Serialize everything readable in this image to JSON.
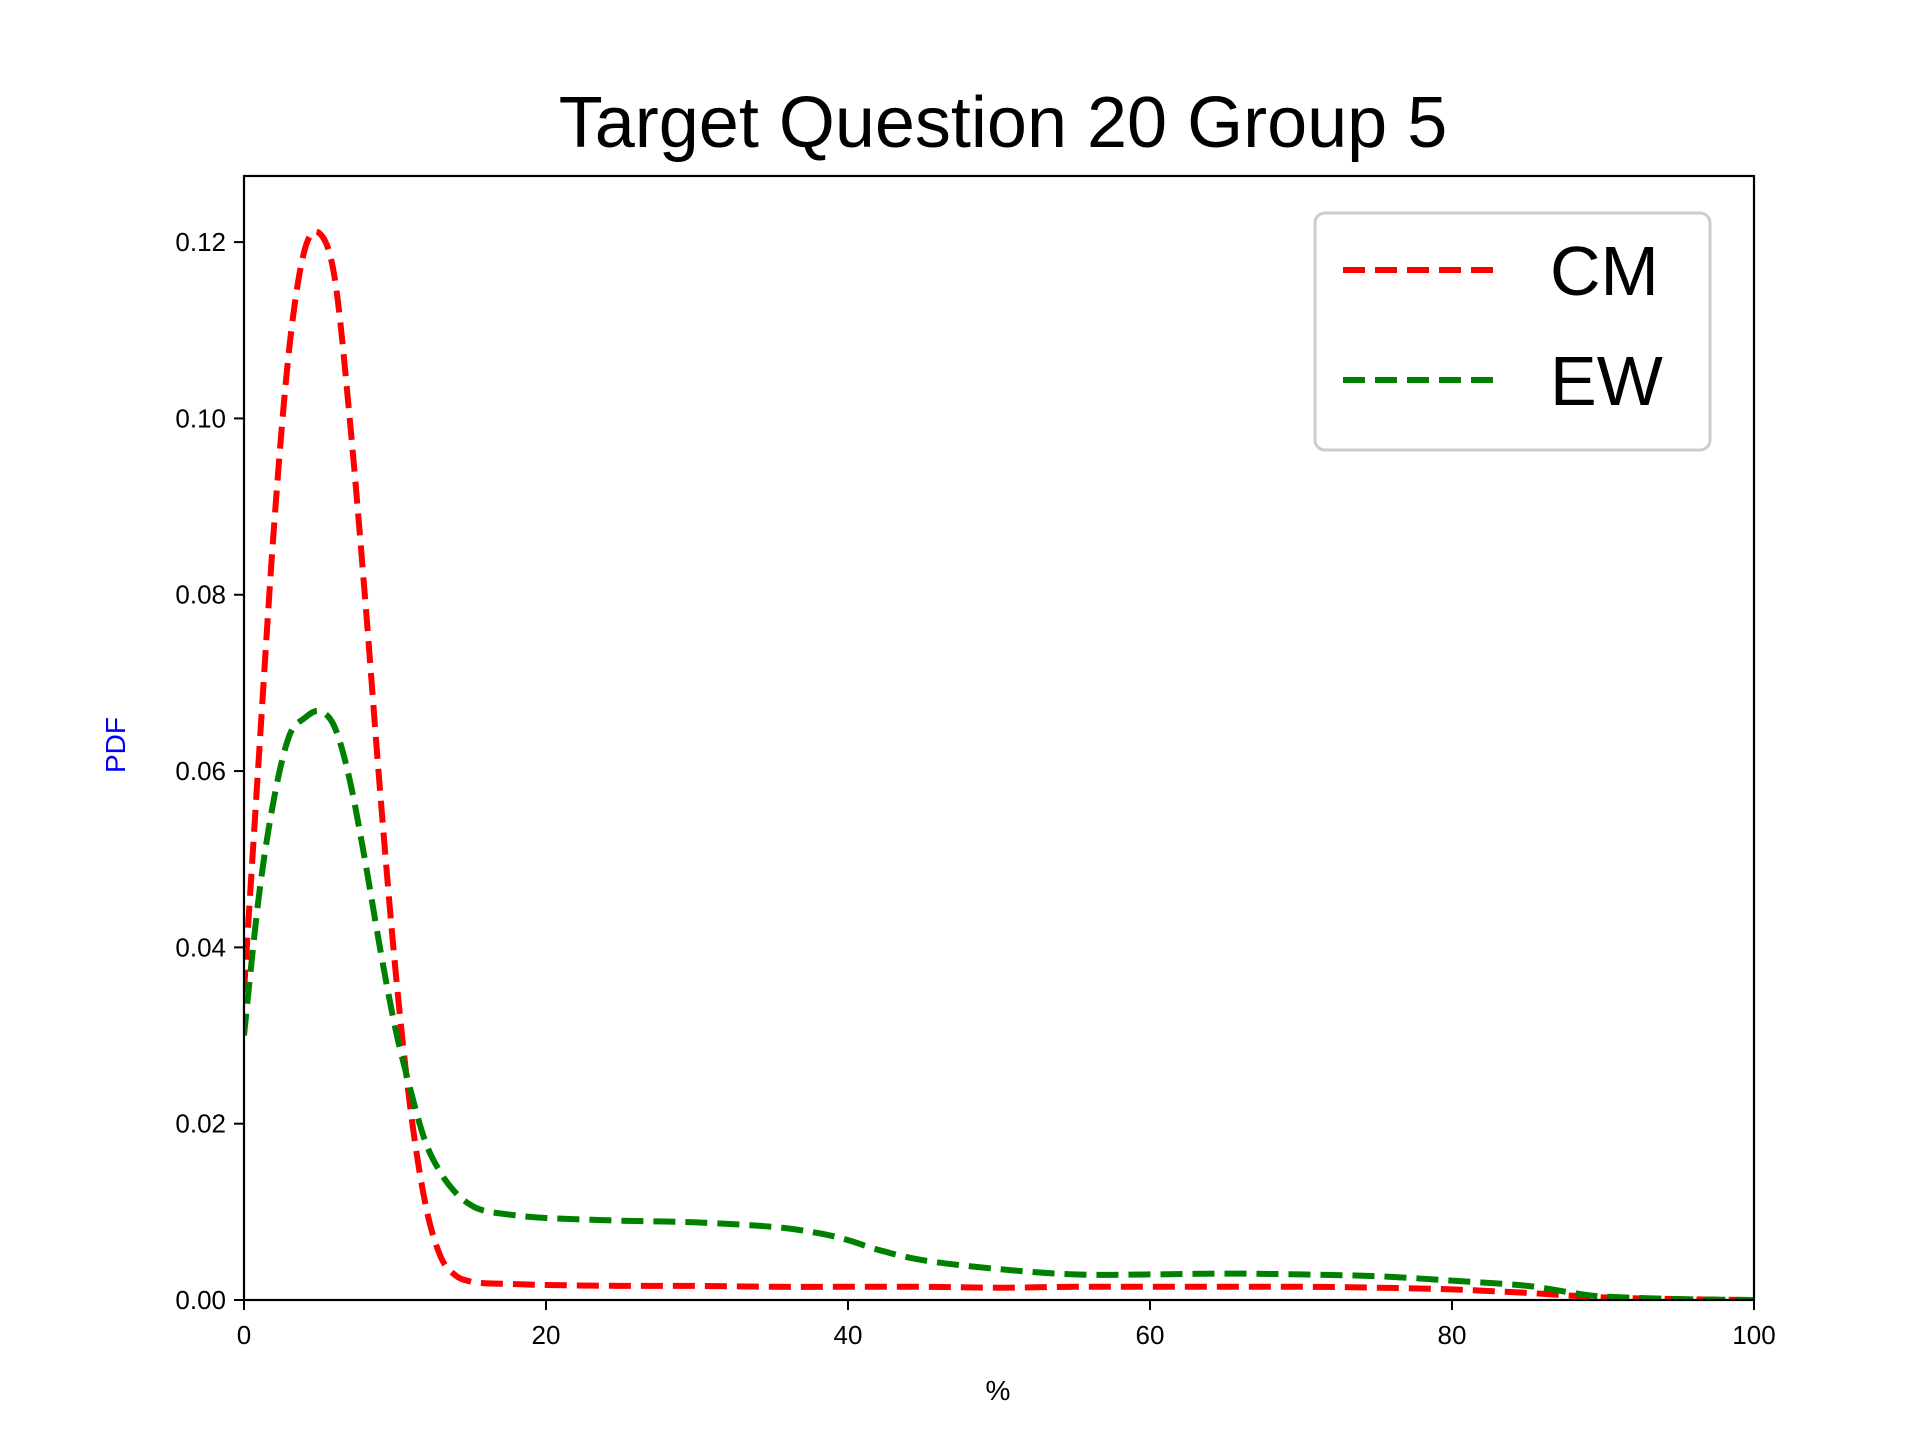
{
  "chart_data": {
    "type": "line",
    "title": "Target Question 20 Group 5",
    "xlabel": "%",
    "ylabel": "PDF",
    "ylabel_color": "#0000ff",
    "xlim": [
      0,
      100
    ],
    "ylim": [
      0,
      0.1275
    ],
    "xticks": [
      0,
      20,
      40,
      60,
      80,
      100
    ],
    "xtick_labels": [
      "0",
      "20",
      "40",
      "60",
      "80",
      "100"
    ],
    "yticks": [
      0,
      0.02,
      0.04,
      0.06,
      0.08,
      0.1,
      0.12
    ],
    "ytick_labels": [
      "0.00",
      "0.02",
      "0.04",
      "0.06",
      "0.08",
      "0.10",
      "0.12"
    ],
    "grid": false,
    "legend_position": "top-right",
    "series": [
      {
        "name": "CM",
        "color": "#ff0000",
        "line_style": "dashed",
        "x": [
          0,
          1,
          2,
          3,
          4,
          5,
          6,
          7,
          8,
          9,
          10,
          11,
          12,
          13,
          14,
          15,
          16,
          18,
          20,
          25,
          30,
          35,
          40,
          45,
          50,
          55,
          60,
          65,
          70,
          75,
          80,
          85,
          90,
          95,
          100
        ],
        "y": [
          0.035,
          0.062,
          0.088,
          0.108,
          0.119,
          0.121,
          0.116,
          0.1,
          0.08,
          0.058,
          0.038,
          0.022,
          0.011,
          0.005,
          0.0028,
          0.0021,
          0.0019,
          0.0018,
          0.0017,
          0.0016,
          0.0016,
          0.0015,
          0.0015,
          0.0015,
          0.0014,
          0.0015,
          0.0015,
          0.0015,
          0.0015,
          0.0014,
          0.0012,
          0.0008,
          0.0003,
          0.0001,
          0.0
        ]
      },
      {
        "name": "EW",
        "color": "#008000",
        "line_style": "dashed",
        "x": [
          0,
          1,
          2,
          3,
          4,
          5,
          6,
          7,
          8,
          9,
          10,
          11,
          12,
          13,
          14,
          15,
          16,
          18,
          20,
          25,
          30,
          35,
          38,
          40,
          42,
          45,
          50,
          55,
          60,
          65,
          70,
          75,
          80,
          85,
          88,
          90,
          95,
          100
        ],
        "y": [
          0.03,
          0.046,
          0.057,
          0.064,
          0.066,
          0.0668,
          0.065,
          0.059,
          0.05,
          0.04,
          0.031,
          0.024,
          0.018,
          0.0145,
          0.0122,
          0.0108,
          0.0101,
          0.0096,
          0.0093,
          0.009,
          0.0088,
          0.0083,
          0.0076,
          0.0068,
          0.0057,
          0.0045,
          0.0035,
          0.0029,
          0.0029,
          0.003,
          0.0029,
          0.0027,
          0.0022,
          0.0016,
          0.0008,
          0.0004,
          0.0001,
          0.0
        ]
      }
    ]
  }
}
